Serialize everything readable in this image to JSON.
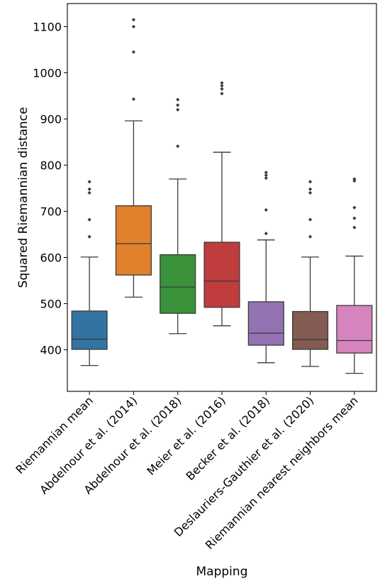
{
  "chart_data": {
    "type": "box",
    "xlabel": "Mapping",
    "ylabel": "Squared Riemannian distance",
    "ylim": [
      310,
      1150
    ],
    "yticks": [
      400,
      500,
      600,
      700,
      800,
      900,
      1000,
      1100
    ],
    "grid": false,
    "categories": [
      "Riemannian mean",
      "Abdelnour et al. (2014)",
      "Abdelnour et al. (2018)",
      "Meier et al. (2016)",
      "Becker et al. (2018)",
      "Deslauriers-Gauthier et al. (2020)",
      "Riemannian nearest neighbors mean"
    ],
    "boxes": [
      {
        "whisker_low": 366,
        "q1": 401,
        "median": 423,
        "q3": 484,
        "whisker_high": 601,
        "outliers": [
          645,
          682,
          740,
          748,
          764
        ],
        "color": "#3274a1"
      },
      {
        "whisker_low": 514,
        "q1": 562,
        "median": 630,
        "q3": 712,
        "whisker_high": 896,
        "outliers": [
          943,
          1045,
          1100,
          1115
        ],
        "color": "#e1812c"
      },
      {
        "whisker_low": 435,
        "q1": 479,
        "median": 536,
        "q3": 606,
        "whisker_high": 770,
        "outliers": [
          841,
          920,
          930,
          942
        ],
        "color": "#3a923a"
      },
      {
        "whisker_low": 452,
        "q1": 492,
        "median": 549,
        "q3": 633,
        "whisker_high": 828,
        "outliers": [
          955,
          965,
          972,
          978
        ],
        "color": "#c03d3e"
      },
      {
        "whisker_low": 372,
        "q1": 410,
        "median": 436,
        "q3": 504,
        "whisker_high": 638,
        "outliers": [
          652,
          703,
          772,
          778,
          784
        ],
        "color": "#9372b2"
      },
      {
        "whisker_low": 364,
        "q1": 401,
        "median": 422,
        "q3": 483,
        "whisker_high": 601,
        "outliers": [
          645,
          682,
          740,
          748,
          764
        ],
        "color": "#845b53"
      },
      {
        "whisker_low": 349,
        "q1": 393,
        "median": 420,
        "q3": 496,
        "whisker_high": 603,
        "outliers": [
          665,
          685,
          708,
          766,
          770
        ],
        "color": "#d684bd"
      }
    ]
  }
}
